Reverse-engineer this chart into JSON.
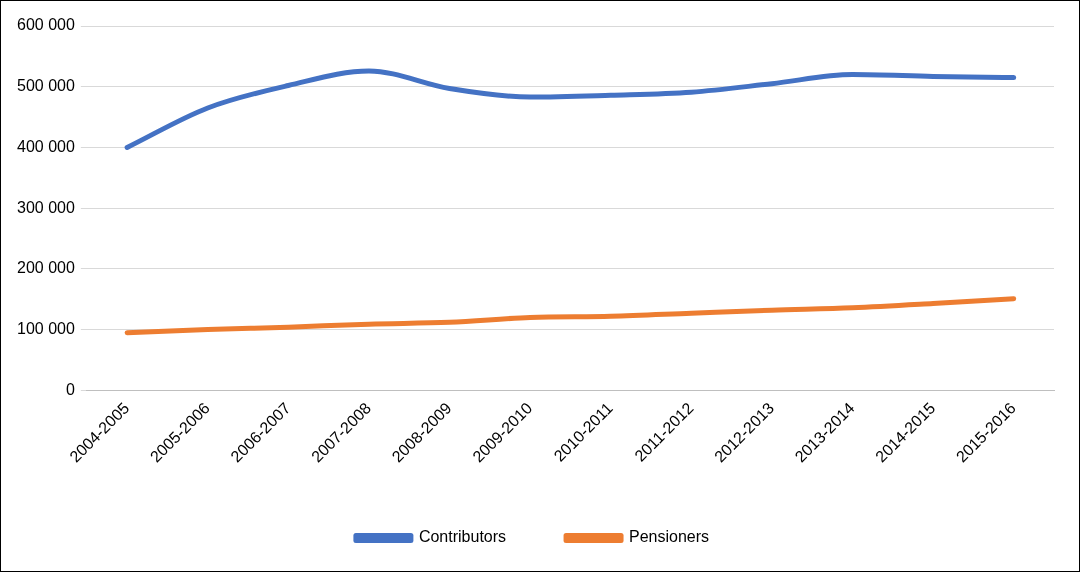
{
  "chart_data": {
    "type": "line",
    "categories": [
      "2004-2005",
      "2005-2006",
      "2006-2007",
      "2007-2008",
      "2008-2009",
      "2009-2010",
      "2010-2011",
      "2011-2012",
      "2012-2013",
      "2013-2014",
      "2014-2015",
      "2015-2016"
    ],
    "series": [
      {
        "name": "Contributors",
        "color": "#4472c4",
        "values": [
          400000,
          465000,
          502000,
          526000,
          497000,
          483000,
          486000,
          491000,
          505000,
          520000,
          517000,
          515000
        ]
      },
      {
        "name": "Pensioners",
        "color": "#ed7d31",
        "values": [
          95000,
          100000,
          104000,
          109000,
          112000,
          120000,
          122000,
          127000,
          132000,
          136000,
          143000,
          151000
        ]
      }
    ],
    "ylim": [
      0,
      600000
    ],
    "yticks": [
      0,
      {
        "value": 100000,
        "label": "100 000"
      },
      {
        "value": 200000,
        "label": "200 000"
      },
      {
        "value": 300000,
        "label": "300 000"
      },
      {
        "value": 400000,
        "label": "400 000"
      },
      {
        "value": 500000,
        "label": "500 000"
      },
      {
        "value": 600000,
        "label": "600 000"
      }
    ],
    "grid": "y",
    "legend": "bottom",
    "marker": "none",
    "line_style": "solid"
  }
}
